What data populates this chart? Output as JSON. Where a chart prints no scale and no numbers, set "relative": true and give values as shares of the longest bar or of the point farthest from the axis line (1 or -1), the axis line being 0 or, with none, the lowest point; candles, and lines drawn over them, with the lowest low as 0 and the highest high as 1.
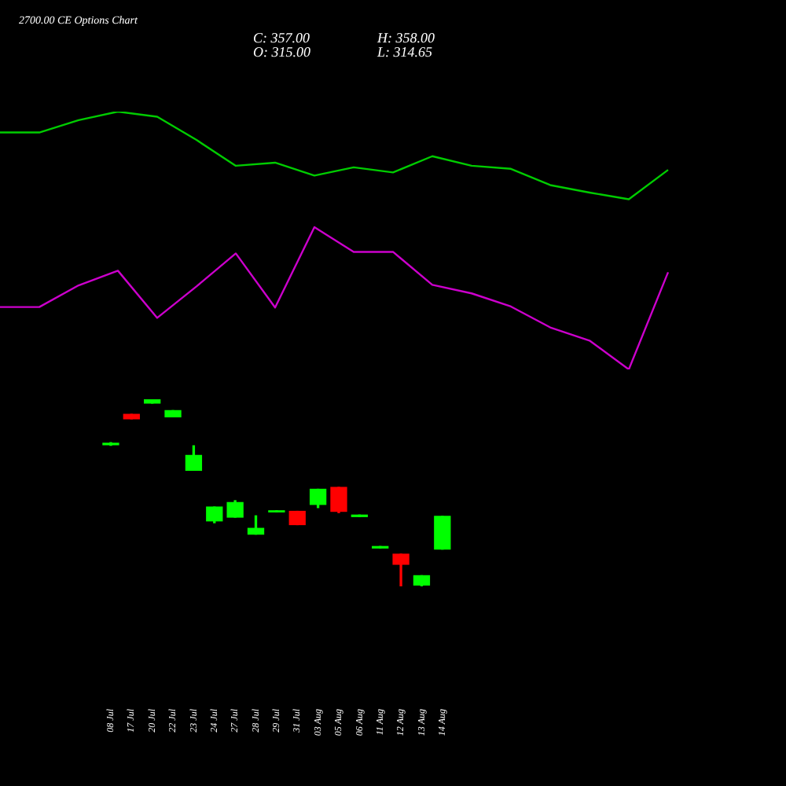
{
  "chart_data": [
    {
      "type": "line",
      "title": "2700.00 CE Options Chart",
      "annotations": [
        "C: 357.00",
        "O: 315.00",
        "H: 358.00",
        "L: 314.65"
      ],
      "relative": true,
      "tick_labels": false,
      "categories": [
        null,
        null,
        null,
        null,
        null,
        null,
        null,
        null,
        null,
        null,
        null,
        null,
        null,
        null,
        null,
        null,
        null,
        null
      ],
      "series": [
        {
          "color": "#00cc00",
          "values": [
            0.919,
            0.919,
            0.967,
            1,
            0.98,
            0.89,
            0.79,
            0.802,
            0.752,
            0.784,
            0.764,
            0.827,
            0.79,
            0.778,
            0.715,
            0.686,
            0.66,
            0.774
          ]
        },
        {
          "color": "#cc00cc",
          "values": [
            0.242,
            0.242,
            0.326,
            0.383,
            0.2,
            0.322,
            0.45,
            0.24,
            0.552,
            0.456,
            0.456,
            0.328,
            0.295,
            0.244,
            0.163,
            0.112,
            0,
            0.377
          ]
        }
      ]
    },
    {
      "type": "candlestick",
      "relative": true,
      "tick_labels": "x",
      "categories": [
        "08 Jul",
        "17 Jul",
        "20 Jul",
        "22 Jul",
        "23 Jul",
        "24 Jul",
        "27 Jul",
        "28 Jul",
        "29 Jul",
        "31 Jul",
        "03 Aug",
        "05 Aug",
        "06 Aug",
        "11 Aug",
        "12 Aug",
        "13 Aug",
        "14 Aug"
      ],
      "colors": [
        "#00ff00",
        "#ff0000",
        "#00ff00",
        "#00ff00",
        "#00ff00",
        "#00ff00",
        "#00ff00",
        "#00ff00",
        "#00ff00",
        "#ff0000",
        "#00ff00",
        "#ff0000",
        "#00ff00",
        "#00ff00",
        "#ff0000",
        "#00ff00",
        "#00ff00"
      ],
      "ohlc": [
        [
          0.757,
          0.768,
          0.754,
          0.765
        ],
        [
          0.919,
          0.919,
          0.896,
          0.896
        ],
        [
          0.98,
          1,
          0.98,
          1
        ],
        [
          0.906,
          0.939,
          0.906,
          0.939
        ],
        [
          0.62,
          0.751,
          0.62,
          0.7
        ],
        [
          0.35,
          0.424,
          0.34,
          0.424
        ],
        [
          0.37,
          0.458,
          0.37,
          0.448
        ],
        [
          0.279,
          0.377,
          0.279,
          0.31
        ],
        [
          0.398,
          0.404,
          0.398,
          0.404
        ],
        [
          0.401,
          0.401,
          0.33,
          0.33
        ],
        [
          0.438,
          0.519,
          0.421,
          0.519
        ],
        [
          0.529,
          0.529,
          0.394,
          0.401
        ],
        [
          0.373,
          0.381,
          0.373,
          0.381
        ],
        [
          0.205,
          0.213,
          0.205,
          0.213
        ],
        [
          0.172,
          0.172,
          0,
          0.118
        ],
        [
          0.007,
          0.057,
          0,
          0.057
        ],
        [
          0.199,
          0.374,
          0.199,
          0.374
        ]
      ]
    }
  ]
}
